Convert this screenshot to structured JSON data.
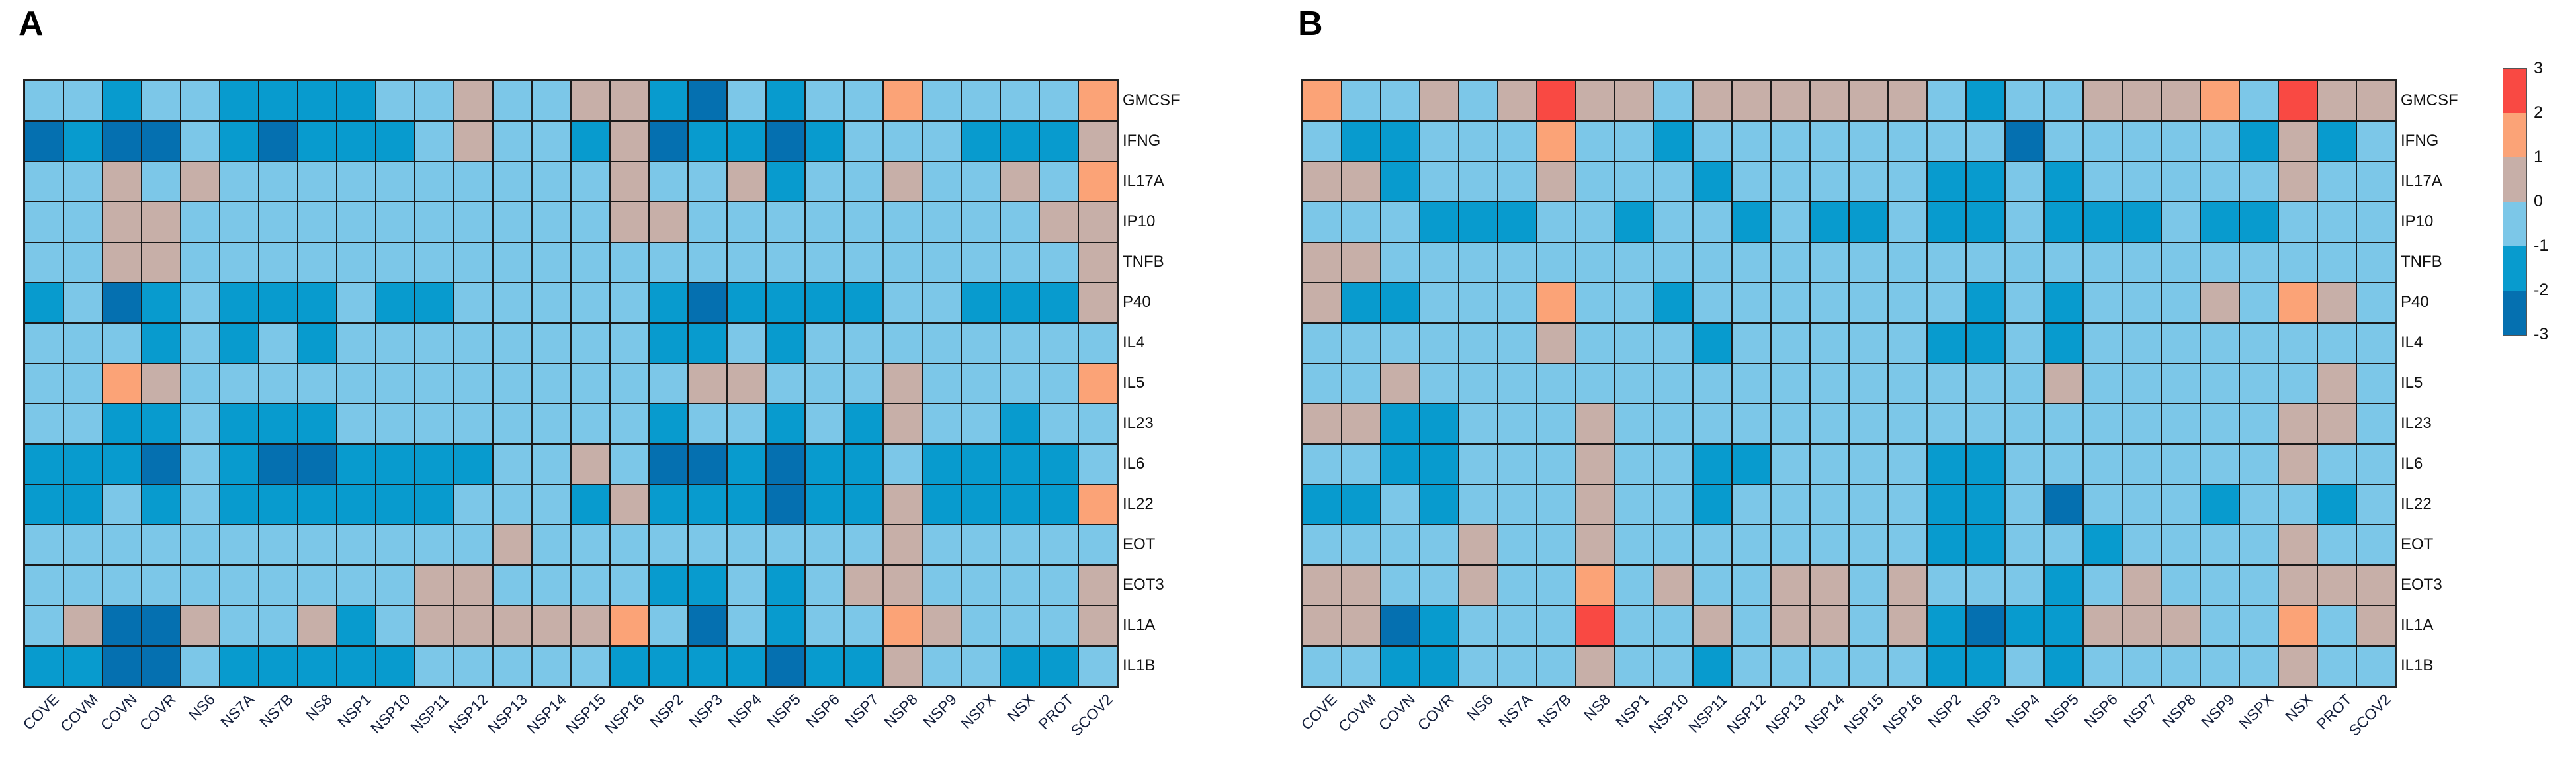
{
  "palette": {
    "L": "#7cc7e8",
    "M": "#089bce",
    "D": "#0570b0",
    "T": "#c7afa8",
    "O": "#fba377",
    "R": "#f94943"
  },
  "value_map": {
    "D": -2.5,
    "M": -1.5,
    "L": -0.5,
    "T": 0.5,
    "O": 1.5,
    "R": 2.5
  },
  "value_bands": {
    "D": "-3 to -2",
    "M": "-2 to -1",
    "L": "-1 to 0",
    "T": "0 to 1",
    "O": "1 to 2",
    "R": "2 to 3"
  },
  "colorbar": {
    "ticks": [
      "3",
      "2",
      "1",
      "0",
      "-1",
      "-2",
      "-3"
    ],
    "bands_top_to_bottom": [
      "R",
      "O",
      "T",
      "L",
      "M",
      "D"
    ]
  },
  "chart_data": [
    {
      "type": "heatmap",
      "title": "A",
      "x": [
        "COVE",
        "COVM",
        "COVN",
        "COVR",
        "NS6",
        "NS7A",
        "NS7B",
        "NS8",
        "NSP1",
        "NSP10",
        "NSP11",
        "NSP12",
        "NSP13",
        "NSP14",
        "NSP15",
        "NSP16",
        "NSP2",
        "NSP3",
        "NSP4",
        "NSP5",
        "NSP6",
        "NSP7",
        "NSP8",
        "NSP9",
        "NSPX",
        "NSX",
        "PROT",
        "SCOV2"
      ],
      "y": [
        "GMCSF",
        "IFNG",
        "IL17A",
        "IP10",
        "TNFB",
        "P40",
        "IL4",
        "IL5",
        "IL23",
        "IL6",
        "IL22",
        "EOT",
        "EOT3",
        "IL1A",
        "IL1B"
      ],
      "legend": "discrete z-score bands; letters map to value_map / palette",
      "values": [
        "LLMLLMMMMLLTLLTTMDLMLLOLLLLO",
        "DMDDLMDMMMLTLLMTDMMDMLLLMMMT",
        "LLTLTLLLLLLLLLLTLLTMLLTLLTLO",
        "LLTTLLLLLLLLLLLTTLLLLLLLLLTT",
        "LLTTLLLLLLLLLLLLLLLLLLLLLLLT",
        "MLDMLMMMLMMLLLLLMDMMMMLLMMMT",
        "LLLMLMLMLLLLLLLLMMLMLLLLLLLL",
        "LLOTLLLLLLLLLLLLLTTLLLTLLLLO",
        "LLMMLMMMLLLLLLLLMLLMLMTLLMLL",
        "MMMDLMDDMMMMLLTLDDMDMMLMMMML",
        "MMLMLMMMMMMLLLMTMMMDMMTMMMMO",
        "LLLLLLLLLLLLTLLLLLLLLLTLLLLL",
        "LLLLLLLLLLTTLLLLMMLMLTTLLLLT",
        "LTDDTLLTMLTTTTTOLDLMLLOTLLLT",
        "MMDDLMMMMMLLLLLMMMMDMMTLLMML"
      ]
    },
    {
      "type": "heatmap",
      "title": "B",
      "x": [
        "COVE",
        "COVM",
        "COVN",
        "COVR",
        "NS6",
        "NS7A",
        "NS7B",
        "NS8",
        "NSP1",
        "NSP10",
        "NSP11",
        "NSP12",
        "NSP13",
        "NSP14",
        "NSP15",
        "NSP16",
        "NSP2",
        "NSP3",
        "NSP4",
        "NSP5",
        "NSP6",
        "NSP7",
        "NSP8",
        "NSP9",
        "NSPX",
        "NSX",
        "PROT",
        "SCOV2"
      ],
      "y": [
        "GMCSF",
        "IFNG",
        "IL17A",
        "IP10",
        "TNFB",
        "P40",
        "IL4",
        "IL5",
        "IL23",
        "IL6",
        "IL22",
        "EOT",
        "EOT3",
        "IL1A",
        "IL1B"
      ],
      "legend": "discrete z-score bands; letters map to value_map / palette",
      "values": [
        "OLLTLTRTTLTTTTTTLMLLTTTOLRTT",
        "LMMLLLOLLMLLLLLLLLDLLLLLMTML",
        "TTMLLLTLLLMLLLLLMMLMLLLLLTLL",
        "LLLMMMLLMLLMLMMLMMLMMMLMMLLL",
        "TTLLLLLLLLLLLLLLLLLLLLLLLLLL",
        "TMMLLLOLLMLLLLLLLMLMLLLTLOTL",
        "LLLLLLTLLLMLLLLLMMLMLLLLLLLL",
        "LLTLLLLLLLLLLLLLLLLTLLLLLLTL",
        "TTMMLLLTLLLLLLLLLLLLLLLLLTTL",
        "LLMMLLLTLLMMLLLLMMLLLLLLLTLL",
        "MMLMLLLTLLMLLLLLMMLDLLLMLLML",
        "LLLLTLLTLLLLLLLLMMLLMLLLLTLL",
        "TTLLTLLOLTLLTTLTLLLMLTLLLTTT",
        "TTDMLLLRLLTLTTLTMDMMTTTLLOLT",
        "LLMMLLLTLLMLLLLLMMLMLLLLLTLL"
      ]
    }
  ]
}
